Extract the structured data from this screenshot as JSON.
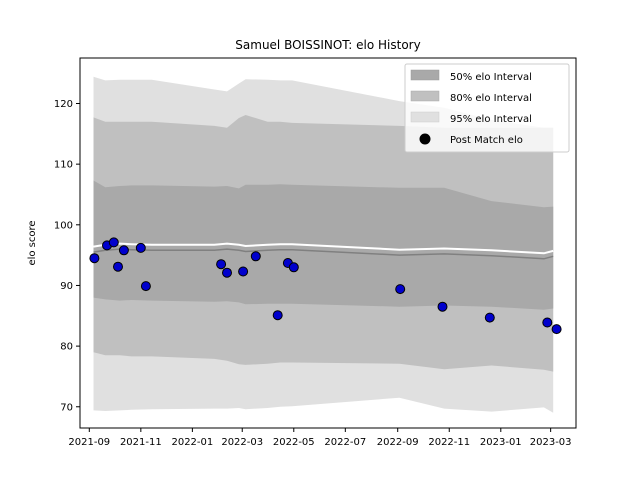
{
  "chart_data": {
    "type": "line",
    "title": "Samuel BOISSINOT: elo History",
    "xlabel": "",
    "ylabel": "elo score",
    "xlim": [
      "2021-08-21",
      "2023-03-31"
    ],
    "ylim": [
      66.5,
      127.5
    ],
    "x_ticks": [
      "2021-09-01",
      "2021-11-01",
      "2022-01-01",
      "2022-03-01",
      "2022-05-01",
      "2022-07-01",
      "2022-09-01",
      "2022-11-01",
      "2023-01-01",
      "2023-03-01"
    ],
    "x_tick_labels": [
      "2021-09",
      "2021-11",
      "2022-01",
      "2022-03",
      "2022-05",
      "2022-07",
      "2022-09",
      "2022-11",
      "2023-01",
      "2023-03"
    ],
    "y_ticks": [
      70,
      80,
      90,
      100,
      110,
      120
    ],
    "grid": false,
    "legend_position": "top-right",
    "legend": [
      "50% elo Interval",
      "80% elo Interval",
      "95% elo Interval",
      "Post Match elo"
    ],
    "band_dates": [
      "2021-09-06",
      "2021-09-20",
      "2021-10-07",
      "2021-10-21",
      "2021-11-14",
      "2022-01-27",
      "2022-02-11",
      "2022-02-25",
      "2022-03-05",
      "2022-03-31",
      "2022-04-15",
      "2022-04-29",
      "2022-09-03",
      "2022-10-26",
      "2022-12-21",
      "2023-02-21",
      "2023-03-04"
    ],
    "mean": [
      95.5,
      95.8,
      96.0,
      95.9,
      95.8,
      95.8,
      96.0,
      95.8,
      95.6,
      95.8,
      95.9,
      95.9,
      95.0,
      95.2,
      94.9,
      94.4,
      94.8
    ],
    "band_50": {
      "upper": [
        107.3,
        106.2,
        106.4,
        106.5,
        106.5,
        106.3,
        106.4,
        106.0,
        106.6,
        106.6,
        106.7,
        106.6,
        106.1,
        106.1,
        103.9,
        102.9,
        103.0
      ],
      "lower": [
        88.0,
        87.7,
        87.5,
        87.6,
        87.5,
        87.3,
        87.4,
        87.2,
        86.9,
        87.0,
        87.0,
        87.0,
        86.5,
        86.7,
        86.5,
        86.0,
        86.2
      ]
    },
    "band_80": {
      "upper": [
        117.7,
        117.0,
        117.0,
        117.0,
        117.0,
        116.3,
        116.0,
        117.6,
        118.1,
        117.0,
        117.0,
        116.8,
        116.3,
        116.0,
        116.0,
        116.0,
        116.0
      ],
      "lower": [
        79.0,
        78.5,
        78.5,
        78.3,
        78.3,
        77.9,
        77.6,
        77.0,
        76.9,
        77.1,
        77.3,
        77.3,
        77.1,
        76.2,
        76.8,
        76.1,
        75.8
      ]
    },
    "band_95": {
      "upper": [
        124.4,
        123.8,
        123.9,
        123.9,
        123.9,
        122.3,
        122.0,
        123.3,
        124.0,
        123.9,
        123.8,
        123.8,
        120.4,
        119.3,
        117.3,
        116.0,
        116.0
      ],
      "lower": [
        69.4,
        69.3,
        69.4,
        69.5,
        69.6,
        69.7,
        69.7,
        69.8,
        69.6,
        69.8,
        70.0,
        70.1,
        71.5,
        69.7,
        69.2,
        69.9,
        69.0
      ]
    },
    "post_match_elo": [
      {
        "x": "2021-09-07",
        "y": 94.5
      },
      {
        "x": "2021-09-22",
        "y": 96.6
      },
      {
        "x": "2021-09-30",
        "y": 97.1
      },
      {
        "x": "2021-10-05",
        "y": 93.1
      },
      {
        "x": "2021-10-12",
        "y": 95.8
      },
      {
        "x": "2021-11-01",
        "y": 96.2
      },
      {
        "x": "2021-11-07",
        "y": 89.9
      },
      {
        "x": "2022-02-04",
        "y": 93.5
      },
      {
        "x": "2022-02-11",
        "y": 92.1
      },
      {
        "x": "2022-03-02",
        "y": 92.3
      },
      {
        "x": "2022-03-17",
        "y": 94.8
      },
      {
        "x": "2022-04-12",
        "y": 85.1
      },
      {
        "x": "2022-04-24",
        "y": 93.7
      },
      {
        "x": "2022-05-01",
        "y": 93.0
      },
      {
        "x": "2022-09-04",
        "y": 89.4
      },
      {
        "x": "2022-10-24",
        "y": 86.5
      },
      {
        "x": "2022-12-19",
        "y": 84.7
      },
      {
        "x": "2023-02-25",
        "y": 83.9
      },
      {
        "x": "2023-03-08",
        "y": 82.8
      }
    ]
  },
  "colors": {
    "band_50": "#a9a9a9",
    "band_80": "#c0c0c0",
    "band_95": "#e0e0e0",
    "mean_line": "#808080",
    "marker_fill": "#0000cd",
    "marker_edge": "#000000",
    "axis": "#000000"
  }
}
